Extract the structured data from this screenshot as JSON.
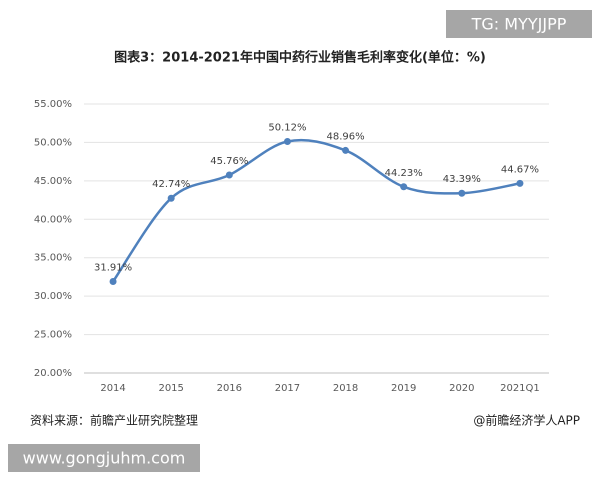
{
  "header_tag": "TG: MYYJJPP",
  "footer_url": "www.gongjuhm.com",
  "chart_data": {
    "type": "line",
    "title": "图表3：2014-2021年中国中药行业销售毛利率变化(单位：%)",
    "categories": [
      "2014",
      "2015",
      "2016",
      "2017",
      "2018",
      "2019",
      "2020",
      "2021Q1"
    ],
    "values": [
      31.91,
      42.74,
      45.76,
      50.12,
      48.96,
      44.23,
      43.39,
      44.67
    ],
    "value_labels": [
      "31.91%",
      "42.74%",
      "45.76%",
      "50.12%",
      "48.96%",
      "44.23%",
      "43.39%",
      "44.67%"
    ],
    "color": "#4f81bd",
    "ylim": [
      20,
      55
    ],
    "yticks": [
      {
        "value": 20,
        "label": "20.00%"
      },
      {
        "value": 25,
        "label": "25.00%"
      },
      {
        "value": 30,
        "label": "30.00%"
      },
      {
        "value": 35,
        "label": "35.00%"
      },
      {
        "value": 40,
        "label": "40.00%"
      },
      {
        "value": 45,
        "label": "45.00%"
      },
      {
        "value": 50,
        "label": "50.00%"
      },
      {
        "value": 55,
        "label": "55.00%"
      }
    ],
    "grid": true,
    "smooth": true,
    "source": "资料来源：前瞻产业研究院整理",
    "credit": "@前瞻经济学人APP"
  }
}
